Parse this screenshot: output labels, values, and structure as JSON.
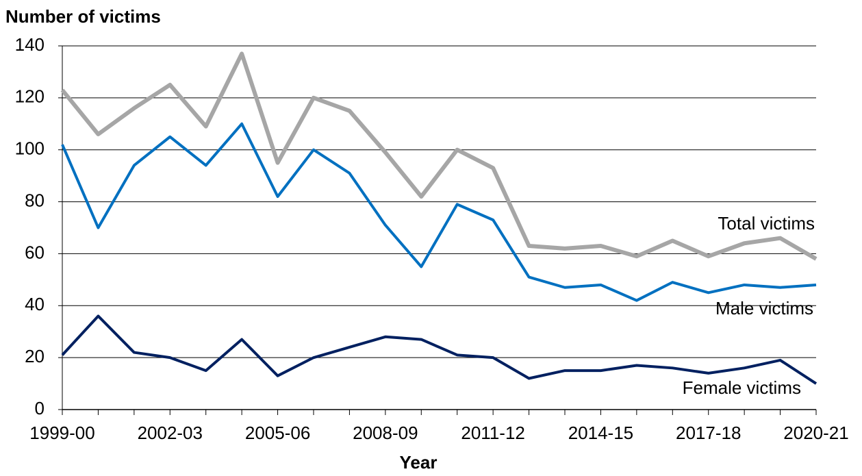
{
  "chart_data": {
    "type": "line",
    "ylabel": "Number of victims",
    "xlabel": "Year",
    "categories": [
      "1999-00",
      null,
      null,
      "2002-03",
      null,
      null,
      "2005-06",
      null,
      null,
      "2008-09",
      null,
      null,
      "2011-12",
      null,
      null,
      "2014-15",
      null,
      null,
      "2017-18",
      null,
      null,
      "2020-21"
    ],
    "series": [
      {
        "name": "Total victims",
        "color": "#a6a6a6",
        "values": [
          123,
          106,
          116,
          125,
          109,
          137,
          95,
          120,
          115,
          99,
          82,
          100,
          93,
          63,
          62,
          63,
          59,
          65,
          59,
          64,
          66,
          58
        ]
      },
      {
        "name": "Male victims",
        "color": "#0070c0",
        "values": [
          102,
          70,
          94,
          105,
          94,
          110,
          82,
          100,
          91,
          71,
          55,
          79,
          73,
          51,
          47,
          48,
          42,
          49,
          45,
          48,
          47,
          48
        ]
      },
      {
        "name": "Female victims",
        "color": "#002060",
        "values": [
          21,
          36,
          22,
          20,
          15,
          27,
          13,
          20,
          24,
          28,
          27,
          21,
          20,
          12,
          15,
          15,
          17,
          16,
          14,
          16,
          19,
          10
        ]
      }
    ],
    "ylim": [
      0,
      140
    ],
    "yticks": [
      0,
      20,
      40,
      60,
      80,
      100,
      120,
      140
    ],
    "grid": true
  }
}
